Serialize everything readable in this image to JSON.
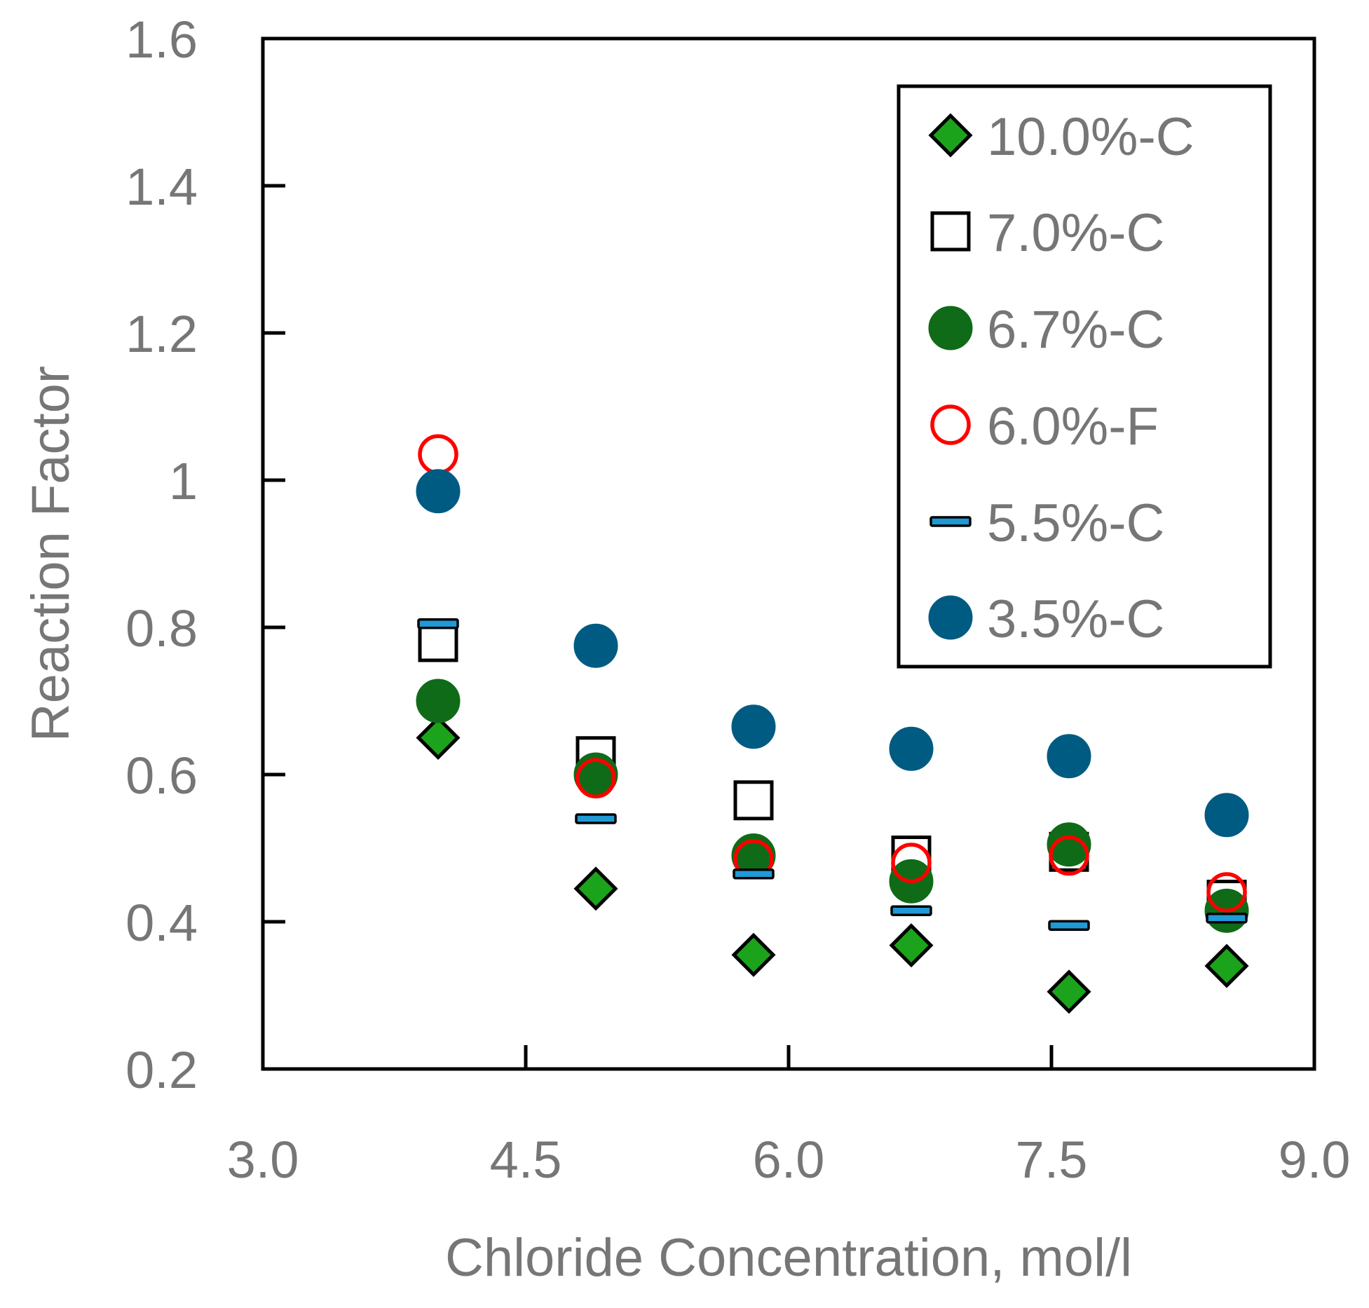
{
  "chart_data": {
    "type": "scatter",
    "title": "",
    "xlabel": "Chloride Concentration, mol/l",
    "ylabel": "Reaction Factor",
    "xlim": [
      3.0,
      9.0
    ],
    "ylim": [
      0.2,
      1.6
    ],
    "xticks": [
      3.0,
      4.5,
      6.0,
      7.5,
      9.0
    ],
    "xtick_labels": [
      "3.0",
      "4.5",
      "6.0",
      "7.5",
      "9.0"
    ],
    "yticks": [
      0.2,
      0.4,
      0.6,
      0.8,
      1.0,
      1.2,
      1.4,
      1.6
    ],
    "ytick_labels": [
      "0.2",
      "0.4",
      "0.6",
      "0.8",
      "1",
      "1.2",
      "1.4",
      "1.6"
    ],
    "grid": false,
    "legend_position": "top-right",
    "series": [
      {
        "name": "10.0%-C",
        "marker": "diamond",
        "fill": "#1ba31b",
        "stroke": "#000000",
        "x": [
          4.0,
          4.9,
          5.8,
          6.7,
          7.6,
          8.5
        ],
        "y": [
          0.65,
          0.445,
          0.355,
          0.368,
          0.305,
          0.34
        ]
      },
      {
        "name": "7.0%-C",
        "marker": "square",
        "fill": "#ffffff",
        "stroke": "#000000",
        "x": [
          4.0,
          4.9,
          5.8,
          6.7,
          7.6,
          8.5
        ],
        "y": [
          0.78,
          0.625,
          0.565,
          0.49,
          0.495,
          0.43
        ]
      },
      {
        "name": "6.7%-C",
        "marker": "circle",
        "fill": "#0f6b17",
        "stroke": "#0f6b17",
        "x": [
          4.0,
          4.9,
          5.8,
          6.7,
          7.6,
          8.5
        ],
        "y": [
          0.7,
          0.6,
          0.49,
          0.455,
          0.505,
          0.415
        ]
      },
      {
        "name": "6.0%-F",
        "marker": "open-circle",
        "fill": "none",
        "stroke": "#ff0000",
        "x": [
          4.0,
          4.9,
          5.8,
          6.7,
          7.6,
          8.5
        ],
        "y": [
          1.035,
          0.595,
          0.485,
          0.48,
          0.49,
          0.44
        ]
      },
      {
        "name": "5.5%-C",
        "marker": "dash",
        "fill": "#1f9ad6",
        "stroke": "#000000",
        "x": [
          4.0,
          4.9,
          5.8,
          6.7,
          7.6,
          8.5
        ],
        "y": [
          0.805,
          0.54,
          0.465,
          0.415,
          0.395,
          0.405
        ]
      },
      {
        "name": "3.5%-C",
        "marker": "circle",
        "fill": "#005b82",
        "stroke": "#005b82",
        "x": [
          4.0,
          4.9,
          5.8,
          6.7,
          7.6,
          8.5
        ],
        "y": [
          0.985,
          0.775,
          0.665,
          0.635,
          0.625,
          0.545
        ]
      }
    ]
  }
}
